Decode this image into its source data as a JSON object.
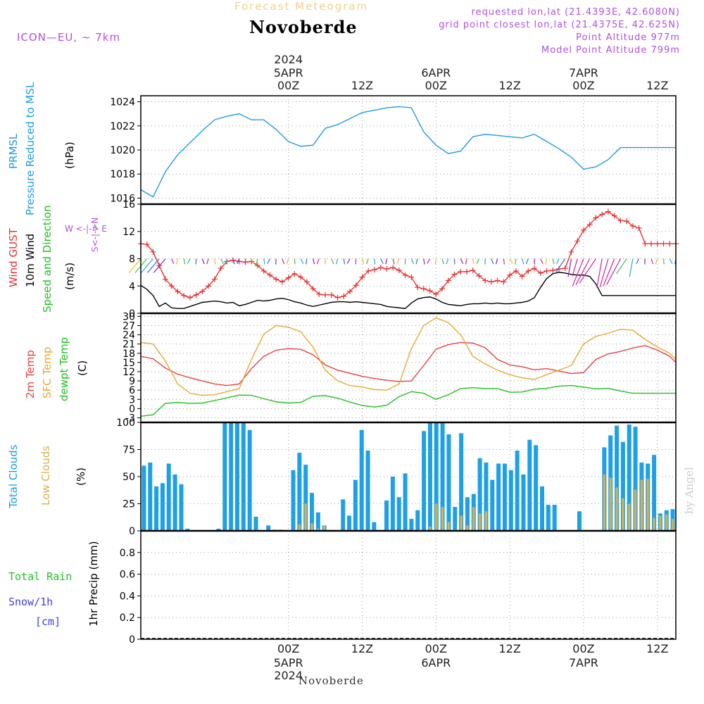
{
  "header": {
    "title": "Forecast Meteogram",
    "station": "Novoberde",
    "model": "ICON—EU, ~ 7km",
    "requested": "requested lon,lat (21.4393E, 42.6080N)",
    "gridpoint": "grid point closest lon,lat (21.4375E, 42.625N)",
    "point_alt": "Point Altitude 977m",
    "model_alt": "Model Point Altitude 799m"
  },
  "time_axis": {
    "top": [
      {
        "line1": "2024",
        "line2": "5APR",
        "line3": "00Z",
        "h": 24
      },
      {
        "line1": "",
        "line2": "",
        "line3": "12Z",
        "h": 36
      },
      {
        "line1": "",
        "line2": "6APR",
        "line3": "00Z",
        "h": 48
      },
      {
        "line1": "",
        "line2": "",
        "line3": "12Z",
        "h": 60
      },
      {
        "line1": "",
        "line2": "7APR",
        "line3": "00Z",
        "h": 72
      },
      {
        "line1": "",
        "line2": "",
        "line3": "12Z",
        "h": 84
      }
    ],
    "bottom": [
      {
        "line1": "00Z",
        "line2": "5APR",
        "line3": "2024",
        "h": 24
      },
      {
        "line1": "12Z",
        "line2": "",
        "line3": "",
        "h": 36
      },
      {
        "line1": "00Z",
        "line2": "6APR",
        "line3": "",
        "h": 48
      },
      {
        "line1": "12Z",
        "line2": "",
        "line3": "",
        "h": 60
      },
      {
        "line1": "00Z",
        "line2": "7APR",
        "line3": "",
        "h": 72
      },
      {
        "line1": "12Z",
        "line2": "",
        "line3": "",
        "h": 84
      }
    ]
  },
  "labels": {
    "p1_a": "PRMSL",
    "p1_b": "Pressure Reduced to MSL",
    "p1_unit": "(hPa)",
    "p2_a": "Wind GUST",
    "p2_b": "10m Wind",
    "p2_c": "Speed and Direction",
    "p2_unit": "(m/s)",
    "p3_a": "2m Temp",
    "p3_b": "SFC Temp",
    "p3_c": "dewpt Temp",
    "p3_unit": "(C)",
    "p4_a": "Total Clouds",
    "p4_b": "Low Clouds",
    "p4_unit": "(%)",
    "p5_unit": "1hr Precip (mm)",
    "rain": "Total  Rain",
    "snow": "Snow/1h",
    "cm": "[cm]",
    "compass_ns": "S<-|->N",
    "compass_we": "W <-|-> E",
    "footer": "Novoberde",
    "watermark": "by Angel"
  },
  "colors": {
    "pressure": "#1e9be6",
    "gust": "#e83030",
    "wind": "#000000",
    "temp2m": "#e84040",
    "sfc": "#e8a830",
    "dewpt": "#20c020",
    "cloud_total": "#1ea0e8",
    "cloud_low": "#d8b050",
    "purple": "#b050e0",
    "rain": "#20c020",
    "snow": "#4040e0"
  },
  "chart_data": [
    {
      "type": "line",
      "title": "PRMSL Pressure Reduced to MSL",
      "ylabel": "(hPa)",
      "ylim": [
        1015.5,
        1024.5
      ],
      "yticks": [
        1016,
        1018,
        1020,
        1022,
        1024
      ],
      "x_hours": [
        0,
        2,
        4,
        6,
        8,
        10,
        12,
        14,
        16,
        18,
        20,
        22,
        24,
        26,
        28,
        30,
        32,
        34,
        36,
        38,
        40,
        42,
        44,
        46,
        48,
        50,
        52,
        54,
        56,
        58,
        60,
        62,
        64,
        66,
        68,
        70,
        72,
        74,
        76,
        78,
        80,
        82,
        84,
        86,
        87
      ],
      "series": [
        {
          "name": "PRMSL",
          "values": [
            1016.7,
            1016.1,
            1018.2,
            1019.6,
            1020.6,
            1021.6,
            1022.5,
            1022.8,
            1023.0,
            1022.5,
            1022.5,
            1021.7,
            1020.7,
            1020.3,
            1020.4,
            1021.8,
            1022.1,
            1022.6,
            1023.1,
            1023.3,
            1023.5,
            1023.6,
            1023.5,
            1021.5,
            1020.4,
            1019.7,
            1019.9,
            1021.1,
            1021.3,
            1021.2,
            1021.1,
            1021.0,
            1021.3,
            1020.7,
            1020.1,
            1019.4,
            1018.4,
            1018.6,
            1019.2,
            1020.2,
            1020.2,
            1020.2,
            1020.2,
            1020.2,
            1020.2
          ]
        }
      ],
      "grid": true
    },
    {
      "type": "line",
      "title": "Wind GUST / 10m Wind Speed and Direction",
      "ylabel": "(m/s)",
      "ylim": [
        0,
        16
      ],
      "yticks": [
        0,
        4,
        8,
        12,
        16
      ],
      "x_hours": [
        0,
        1,
        2,
        3,
        4,
        5,
        6,
        7,
        8,
        9,
        10,
        11,
        12,
        13,
        14,
        15,
        16,
        17,
        18,
        19,
        20,
        21,
        22,
        23,
        24,
        25,
        26,
        27,
        28,
        29,
        30,
        31,
        32,
        33,
        34,
        35,
        36,
        37,
        38,
        39,
        40,
        41,
        42,
        43,
        44,
        45,
        46,
        47,
        48,
        49,
        50,
        51,
        52,
        53,
        54,
        55,
        56,
        57,
        58,
        59,
        60,
        61,
        62,
        63,
        64,
        65,
        66,
        67,
        68,
        69,
        70,
        71,
        72,
        73,
        74,
        75,
        76,
        77,
        78,
        79,
        80,
        81,
        82,
        83,
        84,
        85,
        86,
        87
      ],
      "series": [
        {
          "name": "Wind GUST",
          "values": [
            10.2,
            10.1,
            9,
            7,
            5,
            4,
            3.2,
            2.6,
            2.3,
            2.7,
            3.2,
            4,
            5,
            6.6,
            7.6,
            7.8,
            7.6,
            7.5,
            7.6,
            7,
            6.2,
            5.6,
            5,
            4.6,
            5.2,
            5.8,
            5.3,
            4.6,
            3.6,
            2.8,
            2.7,
            2.7,
            2.3,
            2.5,
            3.2,
            4.1,
            5.3,
            6.2,
            6.4,
            6.7,
            6.5,
            6.7,
            6.3,
            5.6,
            5.3,
            3.8,
            3.6,
            3.3,
            2.8,
            3.6,
            4.8,
            5.7,
            6.1,
            6.1,
            6.3,
            5.5,
            4.8,
            4.6,
            4.8,
            4.6,
            5.6,
            6.2,
            5.4,
            6.2,
            6.6,
            5.9,
            6.2,
            6.3,
            6.5,
            6.6,
            9,
            10.6,
            12.2,
            13,
            14,
            14.5,
            14.9,
            14.3,
            13.6,
            13.5,
            12.8,
            12.5,
            10.2,
            10.2,
            10.2,
            10.2,
            10.2,
            10.2
          ]
        },
        {
          "name": "10m Wind",
          "values": [
            4.1,
            3.5,
            2.6,
            1.0,
            1.5,
            0.8,
            0.7,
            0.7,
            1.0,
            1.3,
            1.6,
            1.7,
            1.8,
            1.7,
            1.5,
            1.6,
            1.1,
            1.3,
            1.6,
            1.9,
            1.8,
            1.9,
            2.1,
            2.2,
            2.0,
            1.7,
            1.5,
            1.2,
            1.0,
            1.2,
            1.4,
            1.6,
            1.7,
            1.7,
            1.6,
            1.7,
            1.6,
            1.5,
            1.4,
            1.3,
            1.0,
            0.9,
            0.8,
            0.7,
            1.5,
            2.1,
            2.3,
            2.4,
            2.1,
            1.6,
            1.3,
            1.2,
            1.1,
            1.3,
            1.4,
            1.4,
            1.5,
            1.4,
            1.5,
            1.4,
            1.4,
            1.5,
            1.6,
            1.8,
            2.3,
            3.8,
            5.1,
            5.8,
            6.0,
            5.9,
            5.7,
            5.6,
            5.6,
            5.4,
            4.3,
            2.6,
            2.6,
            2.6,
            2.6,
            2.6,
            2.6,
            2.6,
            2.6,
            2.6,
            2.6,
            2.6,
            2.6,
            2.6
          ]
        }
      ],
      "grid": true
    },
    {
      "type": "line",
      "title": "2m Temp / SFC Temp / dewpt Temp",
      "ylabel": "(C)",
      "ylim": [
        -4.5,
        31
      ],
      "yticks": [
        -3,
        0,
        3,
        6,
        9,
        12,
        15,
        18,
        21,
        24,
        27,
        30
      ],
      "x_hours": [
        0,
        2,
        4,
        6,
        8,
        10,
        12,
        14,
        16,
        18,
        20,
        22,
        24,
        26,
        28,
        30,
        32,
        34,
        36,
        38,
        40,
        42,
        44,
        46,
        48,
        50,
        52,
        54,
        56,
        58,
        60,
        62,
        64,
        66,
        68,
        70,
        72,
        74,
        76,
        78,
        80,
        82,
        84,
        86,
        87
      ],
      "series": [
        {
          "name": "2m Temp",
          "values": [
            17,
            16.2,
            13.2,
            11.2,
            10,
            9,
            8,
            7.5,
            8,
            13,
            17,
            19,
            19.5,
            19.3,
            17.5,
            14.2,
            12.5,
            11.5,
            10.5,
            9.8,
            9.2,
            8.8,
            9,
            14,
            19.3,
            20.8,
            21.5,
            21.3,
            19.8,
            16,
            14.2,
            13.6,
            12.6,
            13,
            12.2,
            11.4,
            11.7,
            16,
            17.8,
            18.6,
            19.7,
            20.5,
            19,
            17,
            15
          ]
        },
        {
          "name": "SFC Temp",
          "values": [
            21.5,
            21,
            15.5,
            8,
            5,
            4.3,
            4.5,
            5.5,
            6.5,
            16,
            24.2,
            27,
            26.5,
            25,
            20,
            12.5,
            9,
            7.5,
            7,
            6.2,
            6,
            8,
            19.5,
            27,
            29.5,
            28,
            24,
            17,
            14.5,
            12.5,
            11,
            10,
            9.5,
            11,
            12.5,
            14,
            21,
            23.5,
            24.5,
            25.8,
            25.5,
            22.5,
            20,
            18,
            16
          ]
        },
        {
          "name": "dewpt Temp",
          "values": [
            -2.5,
            -2.0,
            1.7,
            2.0,
            1.7,
            1.8,
            2.6,
            3.5,
            4.4,
            4.3,
            3.2,
            2.2,
            1.8,
            2.0,
            4.0,
            4.2,
            3.4,
            2.1,
            1.0,
            0.5,
            1.1,
            3.9,
            5.5,
            5.0,
            3.0,
            4.5,
            6.5,
            6.8,
            6.5,
            6.5,
            5.3,
            5.4,
            6.3,
            6.6,
            7.3,
            7.5,
            7.0,
            6.4,
            6.6,
            5.7,
            5.0,
            5.0,
            5.0,
            5.0,
            5.0
          ]
        }
      ],
      "grid": true
    },
    {
      "type": "bar",
      "title": "Total Clouds / Low Clouds",
      "ylabel": "(%)",
      "ylim": [
        0,
        100
      ],
      "yticks": [
        0,
        25,
        50,
        75,
        100
      ],
      "series": [
        {
          "name": "Total Clouds",
          "values": [
            60,
            63,
            41,
            44,
            62,
            52,
            43,
            2,
            0,
            0,
            0,
            0,
            2,
            100,
            100,
            100,
            100,
            93,
            13,
            0,
            5,
            1,
            1,
            0,
            56,
            72,
            61,
            35,
            17,
            5,
            0,
            0,
            29,
            14,
            47,
            93,
            74,
            8,
            0,
            28,
            50,
            31,
            53,
            11,
            19,
            92,
            100,
            100,
            100,
            89,
            22,
            90,
            31,
            34,
            67,
            63,
            47,
            62,
            62,
            56,
            74,
            52,
            84,
            79,
            41,
            24,
            24,
            0,
            0,
            0,
            18,
            0,
            0,
            0,
            77,
            88,
            97,
            82,
            98,
            96,
            63,
            62,
            70,
            16,
            19,
            20
          ]
        },
        {
          "name": "Low Clouds",
          "values": [
            0,
            0,
            0,
            0,
            0,
            0,
            0,
            0,
            0,
            0,
            0,
            0,
            0,
            0,
            0,
            0,
            0,
            0,
            0,
            0,
            0,
            0,
            0,
            0,
            1,
            6,
            25,
            7,
            2,
            5,
            0,
            0,
            0,
            0,
            0,
            0,
            0,
            0,
            0,
            0,
            0,
            0,
            0,
            0,
            0,
            0,
            4,
            25,
            22,
            8,
            0,
            14,
            5,
            22,
            16,
            18,
            0,
            0,
            0,
            0,
            0,
            0,
            0,
            0,
            0,
            0,
            0,
            0,
            0,
            0,
            0,
            0,
            0,
            0,
            52,
            49,
            40,
            30,
            25,
            38,
            47,
            48,
            12,
            14,
            15,
            11
          ]
        }
      ],
      "grid": true
    },
    {
      "type": "bar",
      "title": "1hr Precip",
      "ylabel": "1hr Precip (mm)",
      "ylim": [
        0,
        1
      ],
      "yticks": [
        0,
        0.2,
        0.4,
        0.6,
        0.8
      ],
      "series": [
        {
          "name": "Total Rain",
          "values": [
            0
          ]
        },
        {
          "name": "Snow/1h",
          "values": [
            0
          ]
        }
      ],
      "grid": true
    }
  ]
}
